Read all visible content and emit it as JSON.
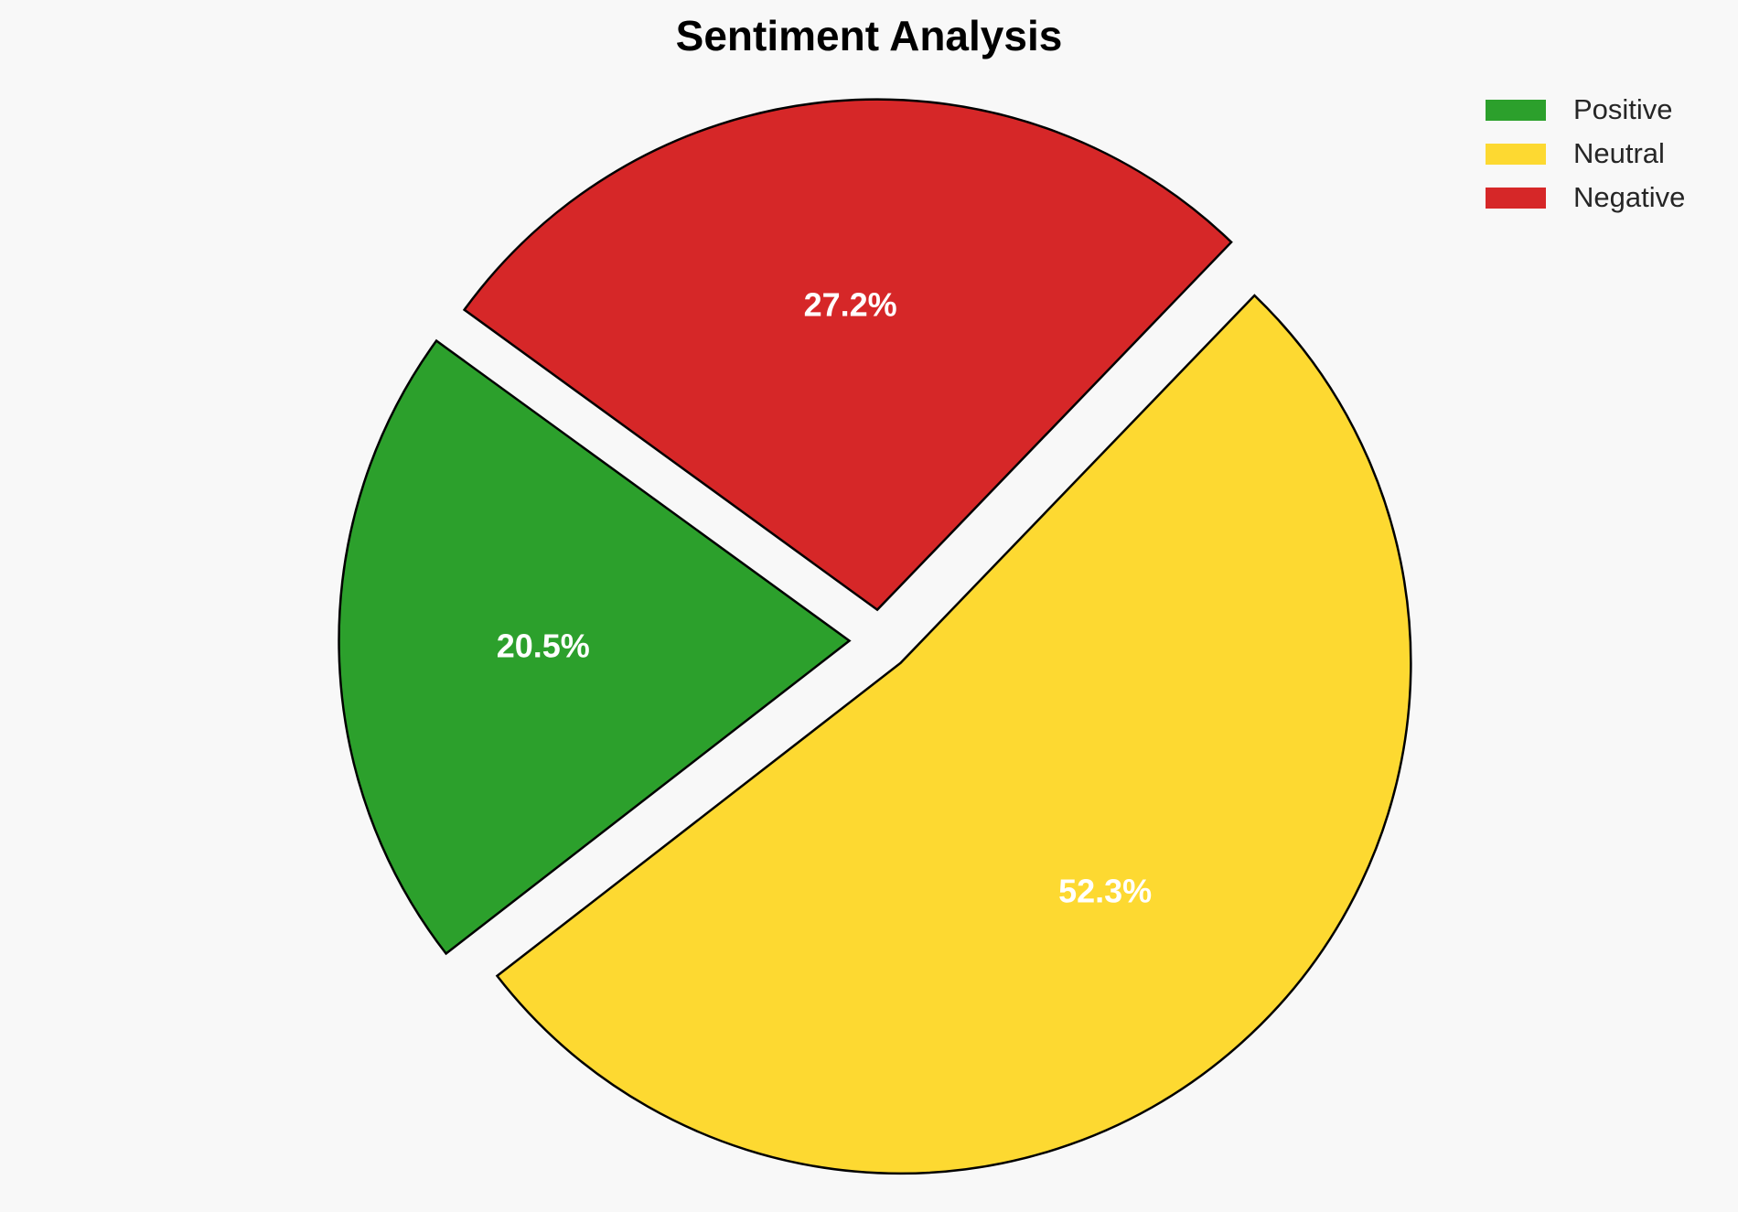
{
  "chart_data": {
    "type": "pie",
    "title": "Sentiment Analysis",
    "slices": [
      {
        "label": "Positive",
        "value": 20.5,
        "display": "20.5%",
        "color": "#2ca02c"
      },
      {
        "label": "Neutral",
        "value": 52.3,
        "display": "52.3%",
        "color": "#fdd931"
      },
      {
        "label": "Negative",
        "value": 27.2,
        "display": "27.2%",
        "color": "#d62728"
      }
    ],
    "legend": {
      "placement": "top-right"
    },
    "slice_edge_color": "#000000"
  }
}
